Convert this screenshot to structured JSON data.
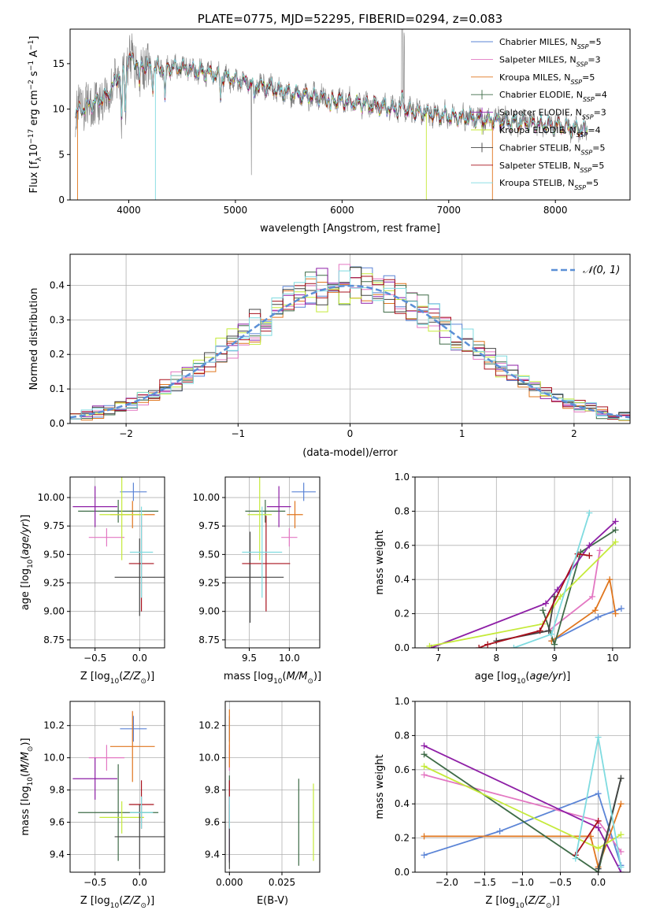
{
  "colors": {
    "chabrier_miles": "#5b84d6",
    "salpeter_miles": "#e377c2",
    "kroupa_miles": "#e0761e",
    "chabrier_elodie": "#3e6b47",
    "salpeter_elodie": "#8e1fa6",
    "kroupa_elodie": "#c5ea3a",
    "chabrier_stelib": "#444444",
    "salpeter_stelib": "#a8101c",
    "kroupa_stelib": "#7fdbe0",
    "data": "#7f7f7f",
    "normal": "#5b8fd6"
  },
  "legend_series": [
    {
      "key": "chabrier_miles",
      "pre": "Chabrier MILES, N",
      "sub": "SSP",
      "post": "=5"
    },
    {
      "key": "salpeter_miles",
      "pre": "Salpeter MILES, N",
      "sub": "SSP",
      "post": "=3"
    },
    {
      "key": "kroupa_miles",
      "pre": "Kroupa MILES, N",
      "sub": "SSP",
      "post": "=5"
    },
    {
      "key": "chabrier_elodie",
      "pre": "Chabrier ELODIE, N",
      "sub": "SSP",
      "post": "=4"
    },
    {
      "key": "salpeter_elodie",
      "pre": "Salpeter ELODIE, N",
      "sub": "SSP",
      "post": "=3"
    },
    {
      "key": "kroupa_elodie",
      "pre": "Kroupa ELODIE, N",
      "sub": "SSP",
      "post": "=4"
    },
    {
      "key": "chabrier_stelib",
      "pre": "Chabrier STELIB, N",
      "sub": "SSP",
      "post": "=5"
    },
    {
      "key": "salpeter_stelib",
      "pre": "Salpeter STELIB, N",
      "sub": "SSP",
      "post": "=5"
    },
    {
      "key": "kroupa_stelib",
      "pre": "Kroupa STELIB, N",
      "sub": "SSP",
      "post": "=5"
    }
  ],
  "chart_data": [
    {
      "id": "spectrum",
      "type": "line",
      "title": "PLATE=0775, MJD=52295, FIBERID=0294, z=0.083",
      "xlabel": "wavelength [Angstrom, rest frame]",
      "ylabel": "Flux [f_λ 10^-17 erg cm^-2 s^-1 A^-1]",
      "xlim": [
        3450,
        8700
      ],
      "ylim": [
        0,
        18.8
      ],
      "xticks": [
        4000,
        5000,
        6000,
        7000,
        8000
      ],
      "yticks": [
        0,
        5,
        10,
        15
      ],
      "grid": false,
      "legend": "right",
      "continuum": {
        "x": [
          3500,
          3800,
          4000,
          4200,
          4500,
          5000,
          5500,
          6000,
          6500,
          7000,
          7500,
          8000,
          8300
        ],
        "y": [
          9.6,
          11.5,
          15.6,
          14.5,
          14.6,
          13.3,
          11.8,
          10.9,
          10.0,
          9.2,
          8.7,
          8.2,
          7.6
        ]
      }
    },
    {
      "id": "residuals",
      "type": "line",
      "xlabel": "(data-model)/error",
      "ylabel": "Normed distribution",
      "xlim": [
        -2.5,
        2.5
      ],
      "ylim": [
        0,
        0.49
      ],
      "xticks": [
        -2,
        -1,
        0,
        1,
        2
      ],
      "yticks": [
        0.0,
        0.1,
        0.2,
        0.3,
        0.4
      ],
      "grid": true,
      "legend": "top-right",
      "normal_label": "𝒩(0, 1)",
      "bin_width": 0.1
    },
    {
      "id": "age_vs_Z",
      "type": "scatter",
      "xlabel": "Z [log10(Z/Z⊙)]",
      "ylabel": "age  [log10(age/yr)]",
      "xlim": [
        -0.78,
        0.28
      ],
      "ylim": [
        8.68,
        10.18
      ],
      "xticks": [
        -0.5,
        0.0
      ],
      "yticks": [
        8.75,
        9.0,
        9.25,
        9.5,
        9.75,
        10.0
      ],
      "grid": true,
      "points": [
        {
          "s": "chabrier_miles",
          "x": -0.07,
          "y": 10.05,
          "xe": 0.15,
          "ye": 0.08
        },
        {
          "s": "salpeter_miles",
          "x": -0.37,
          "y": 9.65,
          "xe": 0.2,
          "ye": 0.08
        },
        {
          "s": "kroupa_miles",
          "x": -0.08,
          "y": 9.85,
          "xe": 0.25,
          "ye": 0.12
        },
        {
          "s": "chabrier_elodie",
          "x": -0.24,
          "y": 9.88,
          "xe": 0.45,
          "ye": 0.1
        },
        {
          "s": "salpeter_elodie",
          "x": -0.5,
          "y": 9.92,
          "xe": 0.25,
          "ye": 0.18
        },
        {
          "s": "kroupa_elodie",
          "x": -0.2,
          "y": 9.85,
          "xe": 0.25,
          "ye": 0.4
        },
        {
          "s": "chabrier_stelib",
          "x": 0.0,
          "y": 9.3,
          "xe": 0.28,
          "ye": 0.34
        },
        {
          "s": "salpeter_stelib",
          "x": 0.02,
          "y": 9.42,
          "xe": 0.14,
          "ye": 0.42
        },
        {
          "s": "kroupa_stelib",
          "x": 0.02,
          "y": 9.52,
          "xe": 0.13,
          "ye": 0.4
        }
      ]
    },
    {
      "id": "age_vs_mass",
      "type": "scatter",
      "xlabel": "mass [log10(M/M⊙)]",
      "ylabel": "",
      "xlim": [
        9.2,
        10.38
      ],
      "ylim": [
        8.68,
        10.18
      ],
      "xticks": [
        9.5,
        10.0
      ],
      "yticks": [
        8.75,
        9.0,
        9.25,
        9.5,
        9.75,
        10.0
      ],
      "grid": true,
      "points": [
        {
          "s": "chabrier_miles",
          "x": 10.18,
          "y": 10.05,
          "xe": 0.15,
          "ye": 0.08
        },
        {
          "s": "salpeter_miles",
          "x": 10.0,
          "y": 9.65,
          "xe": 0.1,
          "ye": 0.08
        },
        {
          "s": "kroupa_miles",
          "x": 10.07,
          "y": 9.85,
          "xe": 0.1,
          "ye": 0.12
        },
        {
          "s": "chabrier_elodie",
          "x": 9.7,
          "y": 9.88,
          "xe": 0.25,
          "ye": 0.1
        },
        {
          "s": "salpeter_elodie",
          "x": 9.87,
          "y": 9.92,
          "xe": 0.15,
          "ye": 0.18
        },
        {
          "s": "kroupa_elodie",
          "x": 9.63,
          "y": 9.85,
          "xe": 0.15,
          "ye": 0.4
        },
        {
          "s": "chabrier_stelib",
          "x": 9.51,
          "y": 9.3,
          "xe": 0.42,
          "ye": 0.4
        },
        {
          "s": "salpeter_stelib",
          "x": 9.71,
          "y": 9.42,
          "xe": 0.3,
          "ye": 0.42
        },
        {
          "s": "kroupa_stelib",
          "x": 9.66,
          "y": 9.52,
          "xe": 0.25,
          "ye": 0.4
        }
      ]
    },
    {
      "id": "weight_vs_age",
      "type": "line",
      "xlabel": "age  [log10(age/yr)]",
      "ylabel": "mass weight",
      "xlim": [
        6.6,
        10.3
      ],
      "ylim": [
        0,
        1.0
      ],
      "xticks": [
        7,
        8,
        9,
        10
      ],
      "yticks": [
        0.0,
        0.2,
        0.4,
        0.6,
        0.8,
        1.0
      ],
      "grid": true,
      "series": [
        {
          "s": "chabrier_miles",
          "x": [
            8.95,
            9.75,
            10.15
          ],
          "y": [
            0.04,
            0.18,
            0.23
          ]
        },
        {
          "s": "salpeter_miles",
          "x": [
            8.9,
            9.65,
            9.78
          ],
          "y": [
            0.1,
            0.3,
            0.57
          ]
        },
        {
          "s": "kroupa_miles",
          "x": [
            8.95,
            9.7,
            9.95,
            10.05
          ],
          "y": [
            0.04,
            0.22,
            0.4,
            0.2
          ]
        },
        {
          "s": "chabrier_elodie",
          "x": [
            8.8,
            9.0,
            9.45,
            10.05
          ],
          "y": [
            0.22,
            0.02,
            0.56,
            0.69
          ]
        },
        {
          "s": "salpeter_elodie",
          "x": [
            6.88,
            8.85,
            9.05,
            9.6,
            10.05
          ],
          "y": [
            0.0,
            0.26,
            0.34,
            0.6,
            0.74
          ]
        },
        {
          "s": "kroupa_elodie",
          "x": [
            6.85,
            8.8,
            9.1,
            10.05
          ],
          "y": [
            0.01,
            0.14,
            0.3,
            0.62
          ]
        },
        {
          "s": "chabrier_stelib",
          "x": [
            8.0,
            8.9,
            9.0
          ],
          "y": [
            0.04,
            0.1,
            0.3
          ]
        },
        {
          "s": "salpeter_stelib",
          "x": [
            7.7,
            7.85,
            8.75,
            9.4,
            9.6
          ],
          "y": [
            0.0,
            0.02,
            0.1,
            0.55,
            0.54
          ]
        },
        {
          "s": "kroupa_stelib",
          "x": [
            8.3,
            8.95,
            9.6
          ],
          "y": [
            0.0,
            0.08,
            0.79
          ]
        }
      ]
    },
    {
      "id": "mass_vs_Z",
      "type": "scatter",
      "xlabel": "Z [log10(Z/Z⊙)]",
      "ylabel": "mass [log10(M/M⊙)]",
      "xlim": [
        -0.78,
        0.28
      ],
      "ylim": [
        9.29,
        10.35
      ],
      "xticks": [
        -0.5,
        0.0
      ],
      "yticks": [
        9.4,
        9.6,
        9.8,
        10.0,
        10.2
      ],
      "grid": true,
      "points": [
        {
          "s": "chabrier_miles",
          "x": -0.07,
          "y": 10.18,
          "xe": 0.15,
          "ye": 0.08
        },
        {
          "s": "salpeter_miles",
          "x": -0.37,
          "y": 10.0,
          "xe": 0.2,
          "ye": 0.08
        },
        {
          "s": "kroupa_miles",
          "x": -0.08,
          "y": 10.07,
          "xe": 0.25,
          "ye": 0.22
        },
        {
          "s": "chabrier_elodie",
          "x": -0.24,
          "y": 9.66,
          "xe": 0.45,
          "ye": 0.3
        },
        {
          "s": "salpeter_elodie",
          "x": -0.5,
          "y": 9.87,
          "xe": 0.25,
          "ye": 0.13
        },
        {
          "s": "kroupa_elodie",
          "x": -0.2,
          "y": 9.63,
          "xe": 0.25,
          "ye": 0.1
        },
        {
          "s": "chabrier_stelib",
          "x": 0.0,
          "y": 9.51,
          "xe": 0.28,
          "ye": 0.2
        },
        {
          "s": "salpeter_stelib",
          "x": 0.02,
          "y": 9.71,
          "xe": 0.14,
          "ye": 0.15
        },
        {
          "s": "kroupa_stelib",
          "x": 0.02,
          "y": 9.66,
          "xe": 0.13,
          "ye": 0.1
        }
      ]
    },
    {
      "id": "mass_vs_ebv",
      "type": "scatter",
      "xlabel": "E(B-V)",
      "ylabel": "",
      "xlim": [
        -0.002,
        0.043
      ],
      "ylim": [
        9.29,
        10.35
      ],
      "xticks": [
        0.0,
        0.025
      ],
      "yticks": [
        9.4,
        9.6,
        9.8,
        10.0,
        10.2
      ],
      "grid": true,
      "points": [
        {
          "s": "chabrier_miles",
          "x": 0.0,
          "y": 10.18,
          "ye": 0.08
        },
        {
          "s": "salpeter_miles",
          "x": 0.0,
          "y": 10.0,
          "ye": 0.08
        },
        {
          "s": "kroupa_miles",
          "x": 0.0,
          "y": 10.12,
          "ye": 0.18
        },
        {
          "s": "chabrier_elodie",
          "x": 0.0,
          "y": 9.62,
          "ye": 0.27
        },
        {
          "s": "salpeter_elodie",
          "x": 0.0,
          "y": 9.56,
          "ye": 0.2
        },
        {
          "s": "kroupa_elodie",
          "x": 0.04,
          "y": 9.6,
          "ye": 0.24
        },
        {
          "s": "chabrier_stelib",
          "x": 0.0,
          "y": 9.51,
          "ye": 0.2
        },
        {
          "s": "salpeter_stelib",
          "x": 0.0,
          "y": 9.71,
          "ye": 0.15
        },
        {
          "s": "kroupa_stelib",
          "x": 0.0,
          "y": 9.66,
          "ye": 0.1
        },
        {
          "s": "chabrier_elodie",
          "x": 0.033,
          "y": 9.6,
          "ye": 0.27
        }
      ]
    },
    {
      "id": "weight_vs_Z",
      "type": "line",
      "xlabel": "Z [log10(Z/Z⊙)]",
      "ylabel": "mass weight",
      "xlim": [
        -2.42,
        0.42
      ],
      "ylim": [
        0,
        1.0
      ],
      "xticks": [
        -2.0,
        -1.5,
        -1.0,
        -0.5,
        0.0
      ],
      "yticks": [
        0.0,
        0.2,
        0.4,
        0.6,
        0.8,
        1.0
      ],
      "grid": true,
      "series": [
        {
          "s": "chabrier_miles",
          "x": [
            -2.3,
            -1.3,
            0.0,
            0.3
          ],
          "y": [
            0.1,
            0.24,
            0.46,
            0.04
          ]
        },
        {
          "s": "salpeter_miles",
          "x": [
            -2.3,
            0.0,
            0.3
          ],
          "y": [
            0.57,
            0.3,
            0.12
          ]
        },
        {
          "s": "kroupa_miles",
          "x": [
            -2.3,
            -0.1,
            0.0,
            0.3
          ],
          "y": [
            0.21,
            0.21,
            0.03,
            0.4
          ]
        },
        {
          "s": "chabrier_elodie",
          "x": [
            -2.3,
            0.0,
            0.3
          ],
          "y": [
            0.69,
            0.0,
            0.55
          ]
        },
        {
          "s": "salpeter_elodie",
          "x": [
            -2.3,
            0.0,
            0.3
          ],
          "y": [
            0.74,
            0.26,
            0.0
          ]
        },
        {
          "s": "kroupa_elodie",
          "x": [
            -2.3,
            0.0,
            0.3
          ],
          "y": [
            0.62,
            0.14,
            0.22
          ]
        },
        {
          "s": "chabrier_stelib",
          "x": [
            0.0,
            0.3
          ],
          "y": [
            0.02,
            0.55
          ]
        },
        {
          "s": "salpeter_stelib",
          "x": [
            -0.3,
            0.0
          ],
          "y": [
            0.1,
            0.3
          ]
        },
        {
          "s": "kroupa_stelib",
          "x": [
            -0.3,
            0.0,
            0.3
          ],
          "y": [
            0.08,
            0.79,
            0.03
          ]
        }
      ]
    }
  ]
}
